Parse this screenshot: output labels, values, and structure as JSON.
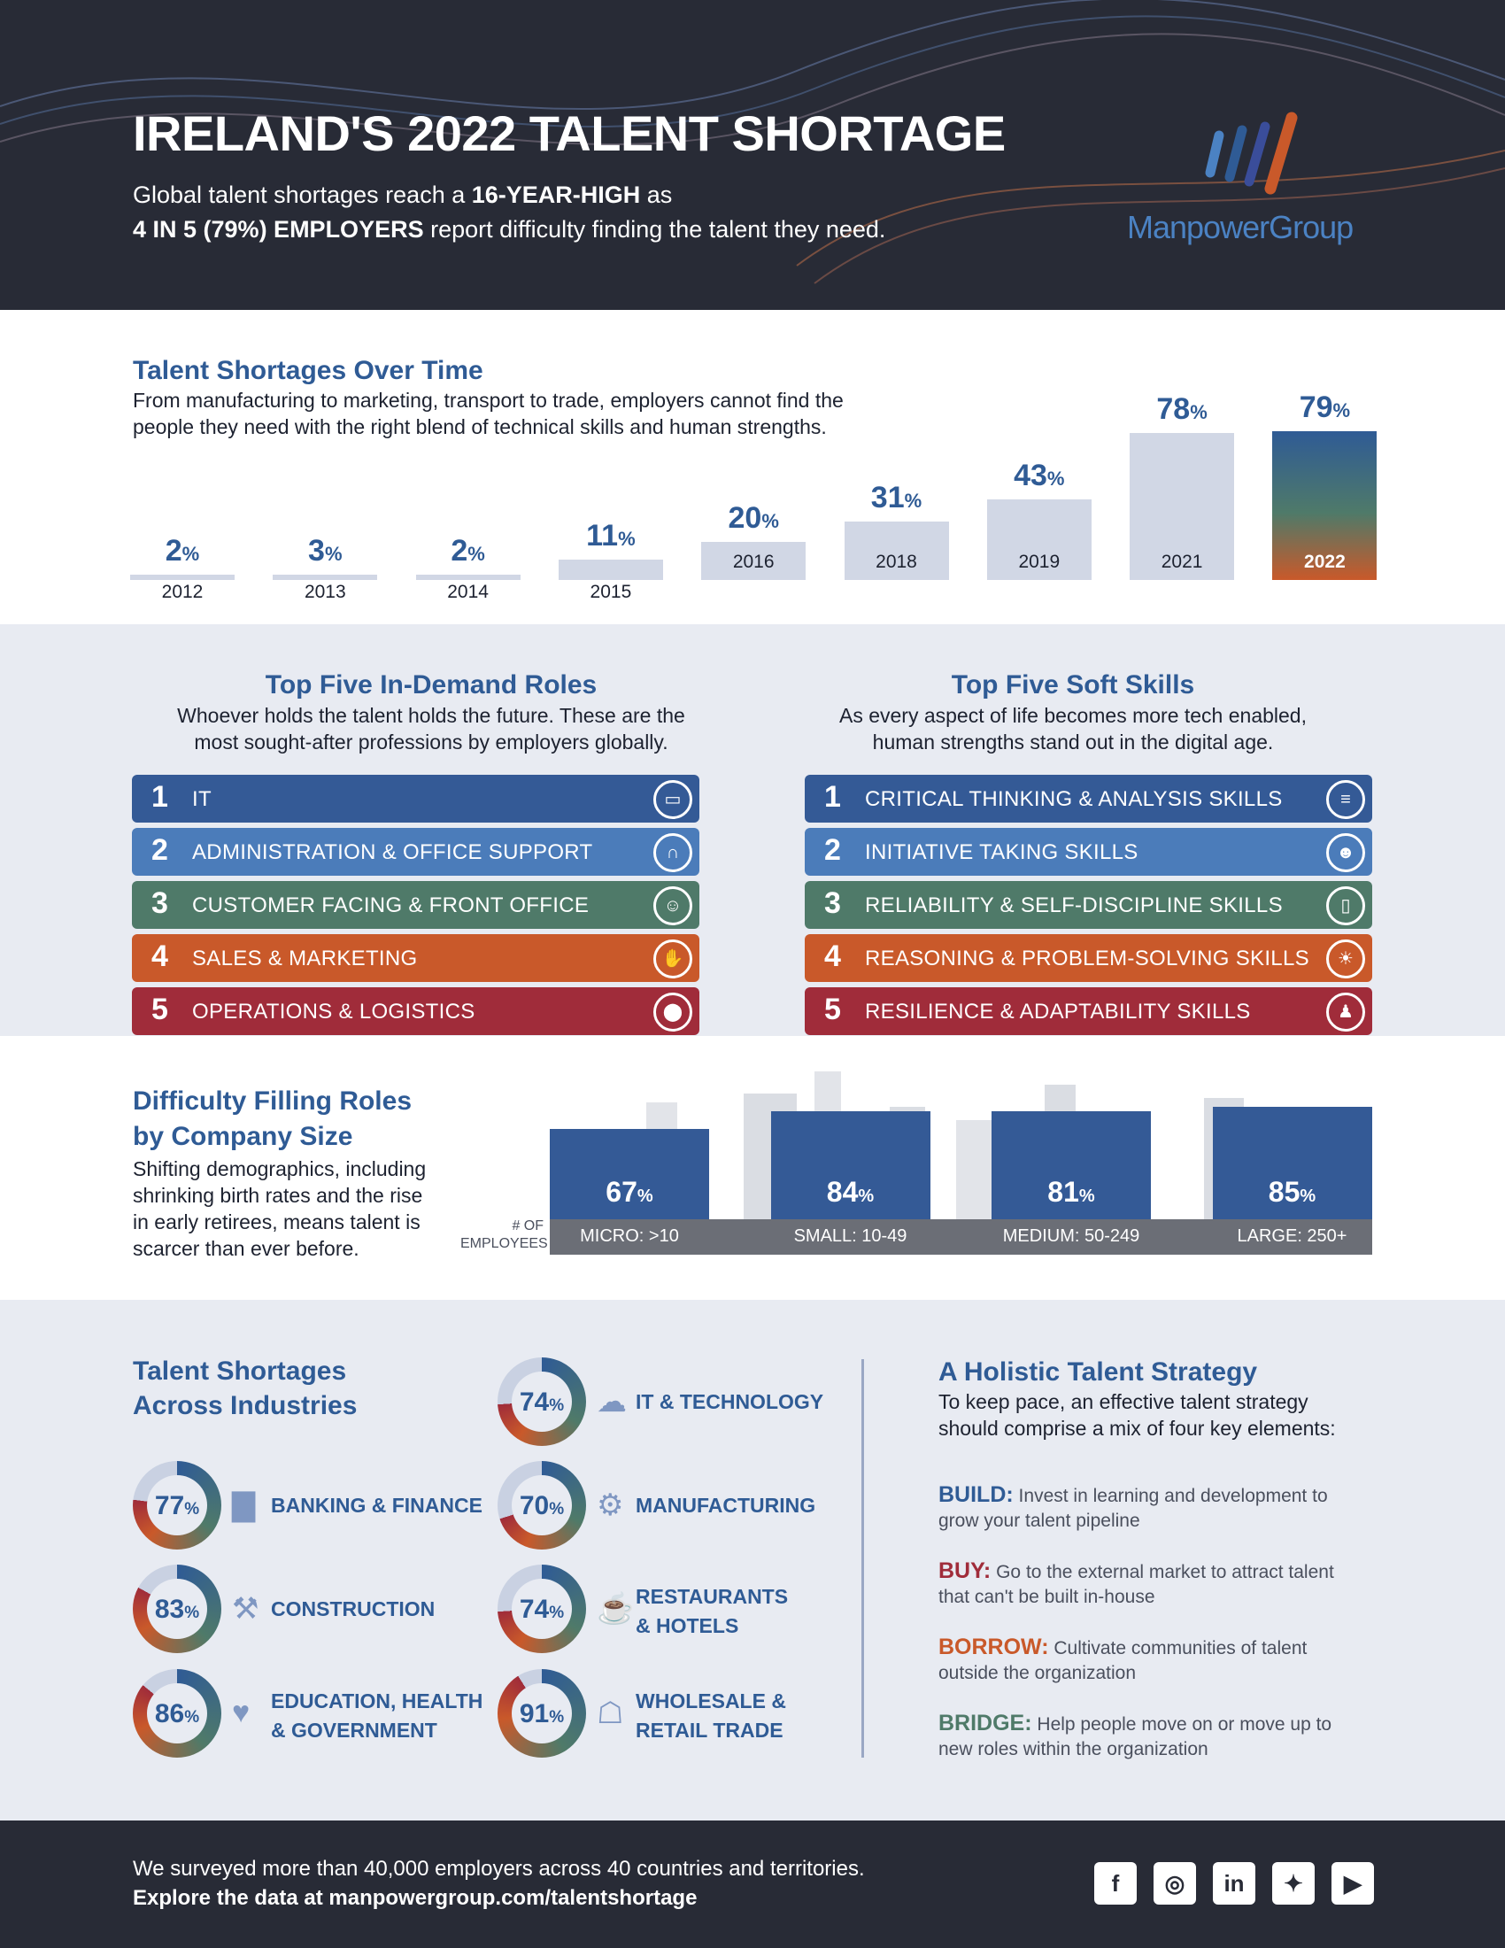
{
  "header": {
    "title": "IRELAND'S 2022 TALENT SHORTAGE",
    "subtitle_part1": "Global talent shortages reach a ",
    "subtitle_bold1": "16-YEAR-HIGH",
    "subtitle_part2": " as",
    "subtitle_bold2": "4 IN 5 (79%) EMPLOYERS",
    "subtitle_part3": " report difficulty finding the talent they need.",
    "brand": "ManpowerGroup",
    "brand_colors": [
      "#4b82c3",
      "#2f5b95",
      "#c9592a"
    ]
  },
  "over_time": {
    "title": "Talent Shortages Over Time",
    "description_line1": "From manufacturing to marketing, transport to trade, employers cannot find the",
    "description_line2": "people they need with the right blend of technical skills and human strengths.",
    "percent_sign": "%"
  },
  "chart_data": {
    "type": "bar",
    "categories": [
      "2012",
      "2013",
      "2014",
      "2015",
      "2016",
      "2018",
      "2019",
      "2021",
      "2022"
    ],
    "values": [
      2,
      3,
      2,
      11,
      20,
      31,
      43,
      78,
      79
    ],
    "value_suffix": "%",
    "highlight": "2022",
    "bar_color": "#d1d7e5",
    "highlight_gradient": [
      "#2f5b95",
      "#c9592a"
    ]
  },
  "roles": {
    "title": "Top Five In-Demand Roles",
    "description_line1": "Whoever holds the talent holds the future. These are the",
    "description_line2": "most sought-after professions by employers globally.",
    "items": [
      {
        "num": "1",
        "label": "IT",
        "color": "#345a96",
        "icon": "laptop-icon",
        "glyph": "▭"
      },
      {
        "num": "2",
        "label": "ADMINISTRATION & OFFICE SUPPORT",
        "color": "#4b7cba",
        "icon": "headset-icon",
        "glyph": "∩"
      },
      {
        "num": "3",
        "label": "CUSTOMER FACING & FRONT OFFICE",
        "color": "#4f7a69",
        "icon": "people-icon",
        "glyph": "☺"
      },
      {
        "num": "4",
        "label": "SALES & MARKETING",
        "color": "#c9592a",
        "icon": "handshake-icon",
        "glyph": "✋"
      },
      {
        "num": "5",
        "label": "OPERATIONS & LOGISTICS",
        "color": "#a02c3a",
        "icon": "map-pin-icon",
        "glyph": "⬤"
      }
    ]
  },
  "skills": {
    "title": "Top Five Soft Skills",
    "description_line1": "As every aspect of life becomes more tech enabled,",
    "description_line2": "human strengths stand out in the digital age.",
    "items": [
      {
        "num": "1",
        "label": "CRITICAL THINKING & ANALYSIS SKILLS",
        "color": "#345a96",
        "icon": "analysis-icon",
        "glyph": "≡"
      },
      {
        "num": "2",
        "label": "INITIATIVE TAKING SKILLS",
        "color": "#4b7cba",
        "icon": "person-icon",
        "glyph": "☻"
      },
      {
        "num": "3",
        "label": "RELIABILITY & SELF-DISCIPLINE SKILLS",
        "color": "#4f7a69",
        "icon": "clipboard-icon",
        "glyph": "▯"
      },
      {
        "num": "4",
        "label": "REASONING & PROBLEM-SOLVING SKILLS",
        "color": "#c9592a",
        "icon": "lightbulb-icon",
        "glyph": "☀"
      },
      {
        "num": "5",
        "label": "RESILIENCE & ADAPTABILITY SKILLS",
        "color": "#a02c3a",
        "icon": "user-icon",
        "glyph": "♟"
      }
    ]
  },
  "company_size": {
    "title_line1": "Difficulty Filling Roles",
    "title_line2": "by Company Size",
    "desc_line1": "Shifting demographics, including",
    "desc_line2": "shrinking birth rates and the rise",
    "desc_line3": "in early retirees, means talent is",
    "desc_line4": "scarcer than ever before.",
    "axis_label_line1": "# OF",
    "axis_label_line2": "EMPLOYEES",
    "items": [
      {
        "value": "67",
        "label": "MICRO: >10"
      },
      {
        "value": "84",
        "label": "SMALL: 10-49"
      },
      {
        "value": "81",
        "label": "MEDIUM: 50-249"
      },
      {
        "value": "85",
        "label": "LARGE: 250+"
      }
    ]
  },
  "industries": {
    "title_line1": "Talent Shortages",
    "title_line2": "Across Industries",
    "items": [
      {
        "value": 77,
        "line1": "BANKING & FINANCE",
        "line2": "",
        "icon": "bar-chart-icon",
        "glyph": "▇"
      },
      {
        "value": 83,
        "line1": "CONSTRUCTION",
        "line2": "",
        "icon": "tools-icon",
        "glyph": "⚒"
      },
      {
        "value": 86,
        "line1": "EDUCATION, HEALTH",
        "line2": "& GOVERNMENT",
        "icon": "hands-icon",
        "glyph": "♥"
      },
      {
        "value": 74,
        "line1": "IT & TECHNOLOGY",
        "line2": "",
        "icon": "cloud-icon",
        "glyph": "☁"
      },
      {
        "value": 70,
        "line1": "MANUFACTURING",
        "line2": "",
        "icon": "factory-icon",
        "glyph": "⚙"
      },
      {
        "value": 74,
        "line1": "RESTAURANTS",
        "line2": "& HOTELS",
        "icon": "chat-bubble-icon",
        "glyph": "☕"
      },
      {
        "value": 91,
        "line1": "WHOLESALE &",
        "line2": "RETAIL TRADE",
        "icon": "register-icon",
        "glyph": "☖"
      }
    ]
  },
  "strategy": {
    "title": "A Holistic Talent Strategy",
    "desc_line1": "To keep pace, an effective talent strategy",
    "desc_line2": "should comprise a mix of four key elements:",
    "items": [
      {
        "head": "BUILD:",
        "color": "#2f5b95",
        "text1": " Invest in learning and development to",
        "text2": "grow your talent pipeline"
      },
      {
        "head": "BUY:",
        "color": "#a02c3a",
        "text1": " Go to the external market to attract talent",
        "text2": "that can't be built in-house"
      },
      {
        "head": "BORROW:",
        "color": "#c9592a",
        "text1": " Cultivate communities of talent",
        "text2": "outside the organization"
      },
      {
        "head": "BRIDGE:",
        "color": "#4f7a69",
        "text1": " Help people move on or move up to",
        "text2": "new roles within the organization"
      }
    ]
  },
  "footer": {
    "line1": "We surveyed more than 40,000 employers across 40 countries and territories.",
    "line2": "Explore the data at manpowergroup.com/talentshortage",
    "social": [
      {
        "icon": "facebook-icon",
        "glyph": "f"
      },
      {
        "icon": "instagram-icon",
        "glyph": "◎"
      },
      {
        "icon": "linkedin-icon",
        "glyph": "in"
      },
      {
        "icon": "twitter-icon",
        "glyph": "✦"
      },
      {
        "icon": "youtube-icon",
        "glyph": "▶"
      }
    ]
  }
}
